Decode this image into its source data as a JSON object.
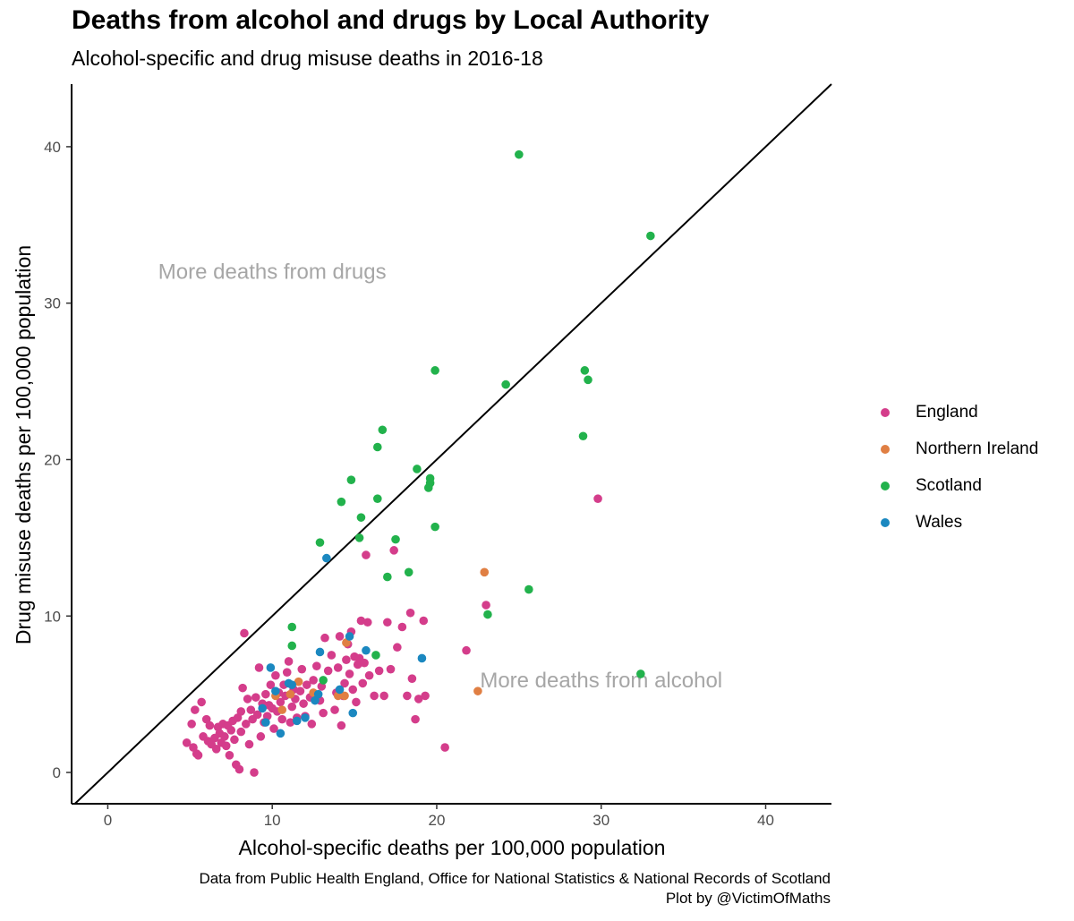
{
  "title": "Deaths from alcohol and drugs by Local Authority",
  "subtitle": "Alcohol-specific and drug misuse deaths in 2016-18",
  "caption": {
    "line1": "Data from Public Health England, Office for National Statistics & National Records of Scotland",
    "line2": "Plot by @VictimOfMaths"
  },
  "chart_data": {
    "type": "scatter",
    "xlabel": "Alcohol-specific deaths per 100,000 population",
    "ylabel": "Drug misuse deaths per 100,000 population",
    "xlim": [
      -2.2,
      44
    ],
    "ylim": [
      -2,
      44
    ],
    "xticks": [
      0,
      10,
      20,
      30,
      40
    ],
    "yticks": [
      0,
      10,
      20,
      30,
      40
    ],
    "grid": false,
    "reference_line": "y = x",
    "legend_position": "right",
    "annotations": [
      {
        "text": "More deaths from drugs",
        "x": 10,
        "y": 32
      },
      {
        "text": "More deaths from alcohol",
        "x": 30,
        "y": 5.9
      }
    ],
    "series": [
      {
        "name": "England",
        "color": "#d43d8b",
        "points": [
          [
            4.8,
            1.9
          ],
          [
            5.1,
            3.1
          ],
          [
            5.2,
            1.6
          ],
          [
            5.3,
            4.0
          ],
          [
            5.4,
            1.2
          ],
          [
            5.5,
            1.1
          ],
          [
            5.7,
            4.5
          ],
          [
            5.8,
            2.3
          ],
          [
            6.0,
            3.4
          ],
          [
            6.1,
            2.0
          ],
          [
            6.2,
            3.0
          ],
          [
            6.3,
            1.8
          ],
          [
            6.5,
            2.2
          ],
          [
            6.6,
            1.5
          ],
          [
            6.7,
            2.9
          ],
          [
            6.8,
            2.5
          ],
          [
            6.9,
            1.9
          ],
          [
            7.0,
            3.1
          ],
          [
            7.1,
            2.3
          ],
          [
            7.2,
            1.7
          ],
          [
            7.3,
            3.0
          ],
          [
            7.4,
            1.1
          ],
          [
            7.5,
            2.7
          ],
          [
            7.6,
            3.3
          ],
          [
            7.7,
            2.1
          ],
          [
            7.8,
            0.5
          ],
          [
            7.9,
            3.5
          ],
          [
            8.0,
            0.2
          ],
          [
            8.1,
            2.6
          ],
          [
            8.1,
            3.9
          ],
          [
            8.2,
            5.4
          ],
          [
            8.3,
            8.9
          ],
          [
            8.4,
            3.1
          ],
          [
            8.5,
            4.7
          ],
          [
            8.6,
            1.8
          ],
          [
            8.7,
            4.0
          ],
          [
            8.8,
            3.4
          ],
          [
            8.9,
            0.0
          ],
          [
            9.0,
            4.8
          ],
          [
            9.1,
            3.7
          ],
          [
            9.2,
            6.7
          ],
          [
            9.3,
            2.3
          ],
          [
            9.4,
            4.4
          ],
          [
            9.5,
            3.2
          ],
          [
            9.6,
            5.0
          ],
          [
            9.7,
            3.6
          ],
          [
            9.8,
            4.3
          ],
          [
            9.9,
            5.6
          ],
          [
            10.0,
            4.1
          ],
          [
            10.1,
            2.8
          ],
          [
            10.2,
            6.2
          ],
          [
            10.3,
            3.9
          ],
          [
            10.4,
            5.1
          ],
          [
            10.5,
            4.5
          ],
          [
            10.6,
            3.4
          ],
          [
            10.7,
            5.6
          ],
          [
            10.8,
            4.9
          ],
          [
            10.9,
            6.4
          ],
          [
            11.0,
            7.1
          ],
          [
            11.1,
            3.2
          ],
          [
            11.2,
            4.2
          ],
          [
            11.3,
            5.3
          ],
          [
            11.4,
            4.7
          ],
          [
            11.5,
            3.5
          ],
          [
            11.7,
            5.2
          ],
          [
            11.8,
            6.6
          ],
          [
            11.9,
            4.4
          ],
          [
            12.0,
            3.6
          ],
          [
            12.1,
            5.6
          ],
          [
            12.3,
            4.8
          ],
          [
            12.4,
            3.1
          ],
          [
            12.5,
            5.9
          ],
          [
            12.7,
            6.8
          ],
          [
            12.9,
            4.6
          ],
          [
            13.0,
            5.5
          ],
          [
            13.1,
            3.8
          ],
          [
            13.2,
            8.6
          ],
          [
            13.4,
            6.5
          ],
          [
            13.6,
            7.5
          ],
          [
            13.8,
            4.0
          ],
          [
            13.9,
            5.1
          ],
          [
            14.0,
            6.7
          ],
          [
            14.1,
            8.7
          ],
          [
            14.2,
            3.0
          ],
          [
            14.3,
            4.9
          ],
          [
            14.4,
            5.7
          ],
          [
            14.5,
            7.2
          ],
          [
            14.6,
            8.2
          ],
          [
            14.7,
            6.3
          ],
          [
            14.8,
            9.0
          ],
          [
            14.9,
            5.3
          ],
          [
            15.0,
            7.4
          ],
          [
            15.1,
            4.5
          ],
          [
            15.2,
            6.9
          ],
          [
            15.3,
            7.3
          ],
          [
            15.4,
            9.7
          ],
          [
            15.5,
            5.7
          ],
          [
            15.6,
            7.0
          ],
          [
            15.7,
            13.9
          ],
          [
            15.8,
            9.6
          ],
          [
            15.9,
            6.2
          ],
          [
            16.2,
            4.9
          ],
          [
            16.5,
            6.5
          ],
          [
            16.8,
            4.9
          ],
          [
            17.0,
            9.6
          ],
          [
            17.2,
            6.6
          ],
          [
            17.4,
            14.2
          ],
          [
            17.6,
            8.0
          ],
          [
            17.9,
            9.3
          ],
          [
            18.2,
            4.9
          ],
          [
            18.4,
            10.2
          ],
          [
            18.5,
            6.0
          ],
          [
            18.7,
            3.4
          ],
          [
            18.9,
            4.7
          ],
          [
            19.2,
            9.7
          ],
          [
            19.3,
            4.9
          ],
          [
            20.5,
            1.6
          ],
          [
            21.8,
            7.8
          ],
          [
            23.0,
            10.7
          ],
          [
            29.8,
            17.5
          ]
        ]
      },
      {
        "name": "Northern Ireland",
        "color": "#e07f43",
        "points": [
          [
            10.2,
            4.9
          ],
          [
            10.6,
            4.0
          ],
          [
            11.1,
            5.0
          ],
          [
            11.6,
            5.8
          ],
          [
            12.5,
            5.1
          ],
          [
            14.0,
            4.9
          ],
          [
            14.4,
            4.9
          ],
          [
            14.5,
            8.3
          ],
          [
            22.5,
            5.2
          ],
          [
            22.9,
            12.8
          ]
        ]
      },
      {
        "name": "Scotland",
        "color": "#22b24c",
        "points": [
          [
            11.2,
            9.3
          ],
          [
            11.2,
            8.1
          ],
          [
            12.9,
            14.7
          ],
          [
            13.1,
            5.9
          ],
          [
            14.2,
            17.3
          ],
          [
            14.8,
            18.7
          ],
          [
            15.3,
            15.0
          ],
          [
            15.4,
            16.3
          ],
          [
            16.3,
            7.5
          ],
          [
            16.4,
            17.5
          ],
          [
            16.4,
            20.8
          ],
          [
            16.7,
            21.9
          ],
          [
            17.0,
            12.5
          ],
          [
            17.5,
            14.9
          ],
          [
            18.3,
            12.8
          ],
          [
            18.8,
            19.4
          ],
          [
            19.5,
            18.2
          ],
          [
            19.6,
            18.5
          ],
          [
            19.6,
            18.8
          ],
          [
            19.9,
            15.7
          ],
          [
            19.9,
            25.7
          ],
          [
            23.1,
            10.1
          ],
          [
            24.2,
            24.8
          ],
          [
            25.0,
            39.5
          ],
          [
            25.6,
            11.7
          ],
          [
            28.9,
            21.5
          ],
          [
            29.0,
            25.7
          ],
          [
            29.2,
            25.1
          ],
          [
            32.4,
            6.3
          ],
          [
            33.0,
            34.3
          ]
        ]
      },
      {
        "name": "Wales",
        "color": "#1b88c0",
        "points": [
          [
            9.4,
            4.1
          ],
          [
            9.6,
            3.2
          ],
          [
            9.9,
            6.7
          ],
          [
            10.2,
            5.2
          ],
          [
            10.5,
            2.5
          ],
          [
            11.0,
            5.7
          ],
          [
            11.2,
            5.6
          ],
          [
            11.5,
            3.3
          ],
          [
            12.0,
            3.5
          ],
          [
            12.6,
            4.6
          ],
          [
            12.8,
            5.0
          ],
          [
            12.9,
            7.7
          ],
          [
            13.3,
            13.7
          ],
          [
            14.1,
            5.3
          ],
          [
            14.7,
            8.7
          ],
          [
            14.9,
            3.8
          ],
          [
            15.7,
            7.8
          ],
          [
            19.1,
            7.3
          ]
        ]
      }
    ]
  }
}
